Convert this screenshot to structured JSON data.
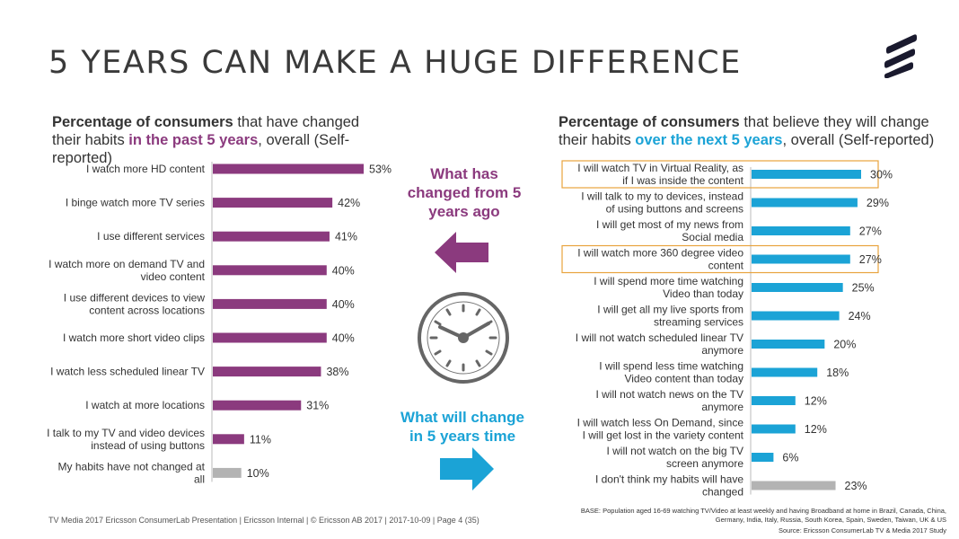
{
  "title": "5 YEARS CAN MAKE A HUGE DIFFERENCE",
  "left_subtitle": {
    "bold": "Percentage of consumers",
    "text1": " that have changed their habits ",
    "highlight": "in the past 5 years",
    "text2": ", overall (Self-reported)"
  },
  "right_subtitle": {
    "bold": "Percentage of consumers",
    "text1": " that believe they will change their habits ",
    "highlight": "over the next 5 years",
    "text2": ", overall (Self-reported)"
  },
  "past_text": "What has changed from 5 years ago",
  "future_text": "What will change in 5 years time",
  "footer": "TV Media 2017 Ericsson ConsumerLab Presentation  |  Ericsson Internal  |  © Ericsson AB 2017  |  2017-10-09  |  Page 4 (35)",
  "base_note": "BASE: Population  aged 16-69 watching TV/Video at least weekly and having Broadband at home in Brazil, Canada, China, Germany, India, Italy, Russia, South Korea, Spain, Sweden, Taiwan, UK & US",
  "source_note": "Source: Ericsson ConsumerLab TV & Media 2017 Study",
  "colors": {
    "purple": "#8b3a7e",
    "blue": "#1ba3d6",
    "gray": "#b3b3b3",
    "orange": "#e8a33d"
  },
  "chart_data": [
    {
      "type": "bar",
      "orientation": "horizontal",
      "categories": [
        [
          "I watch more HD content"
        ],
        [
          "I binge watch more TV series"
        ],
        [
          "I use different services"
        ],
        [
          "I watch more on demand TV and",
          "video content"
        ],
        [
          "I use different devices to view",
          "content across locations"
        ],
        [
          "I watch more short video clips"
        ],
        [
          "I watch less scheduled linear TV"
        ],
        [
          "I watch at more locations"
        ],
        [
          "I talk to my TV and video devices",
          "instead of using buttons"
        ],
        [
          "My habits have not changed at",
          "all"
        ]
      ],
      "values": [
        53,
        42,
        41,
        40,
        40,
        40,
        38,
        31,
        11,
        10
      ],
      "value_labels": [
        "53%",
        "42%",
        "41%",
        "40%",
        "40%",
        "40%",
        "38%",
        "31%",
        "11%",
        "10%"
      ],
      "bar_colors": [
        "purple",
        "purple",
        "purple",
        "purple",
        "purple",
        "purple",
        "purple",
        "purple",
        "purple",
        "gray"
      ],
      "xlim": [
        0,
        53
      ]
    },
    {
      "type": "bar",
      "orientation": "horizontal",
      "categories": [
        [
          "I will watch TV in Virtual Reality, as",
          "if I was inside the content"
        ],
        [
          "I will talk to my to devices, instead",
          "of using buttons and  screens"
        ],
        [
          "I will get most of my news from",
          "Social media"
        ],
        [
          "I will watch more 360 degree video",
          "content"
        ],
        [
          "I will spend more time watching",
          "Video than today"
        ],
        [
          "I will get all my live sports from",
          "streaming services"
        ],
        [
          "I will not watch scheduled linear TV",
          "anymore"
        ],
        [
          "I will spend less time watching",
          "Video content than today"
        ],
        [
          "I will not watch news on the TV",
          "anymore"
        ],
        [
          "I will watch less On Demand,  since",
          "I will get lost in the variety content"
        ],
        [
          "I will not watch on the big TV",
          "screen anymore"
        ],
        [
          "I don't think my habits will have",
          "changed"
        ]
      ],
      "values": [
        30,
        29,
        27,
        27,
        25,
        24,
        20,
        18,
        12,
        12,
        6,
        23
      ],
      "value_labels": [
        "30%",
        "29%",
        "27%",
        "27%",
        "25%",
        "24%",
        "20%",
        "18%",
        "12%",
        "12%",
        "6%",
        "23%"
      ],
      "bar_colors": [
        "blue",
        "blue",
        "blue",
        "blue",
        "blue",
        "blue",
        "blue",
        "blue",
        "blue",
        "blue",
        "blue",
        "gray"
      ],
      "highlighted": [
        0,
        3
      ],
      "xlim": [
        0,
        30
      ]
    }
  ]
}
